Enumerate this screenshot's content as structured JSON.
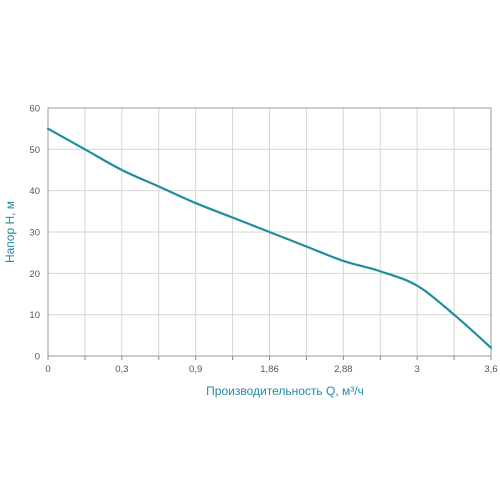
{
  "chart_data": {
    "type": "line",
    "title": "",
    "xlabel": "Производительность Q, м³/ч",
    "ylabel": "Напор H, м",
    "x_tick_labels": [
      "0",
      "0,3",
      "0,9",
      "1,86",
      "2,88",
      "3",
      "3,6"
    ],
    "y_ticks": [
      0,
      10,
      20,
      30,
      40,
      50,
      60
    ],
    "ylim": [
      0,
      60
    ],
    "grid": true,
    "line_color": "#1f8f9a",
    "label_color": "#1f8aa6",
    "series": [
      {
        "points": [
          {
            "tick": 0,
            "y": 55
          },
          {
            "tick": 0.5,
            "y": 50
          },
          {
            "tick": 1,
            "y": 45
          },
          {
            "tick": 1.5,
            "y": 41
          },
          {
            "tick": 2,
            "y": 37
          },
          {
            "tick": 2.5,
            "y": 33.5
          },
          {
            "tick": 3,
            "y": 30
          },
          {
            "tick": 3.5,
            "y": 26.5
          },
          {
            "tick": 4,
            "y": 23
          },
          {
            "tick": 4.5,
            "y": 20.5
          },
          {
            "tick": 5,
            "y": 17
          },
          {
            "tick": 5.5,
            "y": 10
          },
          {
            "tick": 6,
            "y": 2
          }
        ]
      }
    ]
  }
}
